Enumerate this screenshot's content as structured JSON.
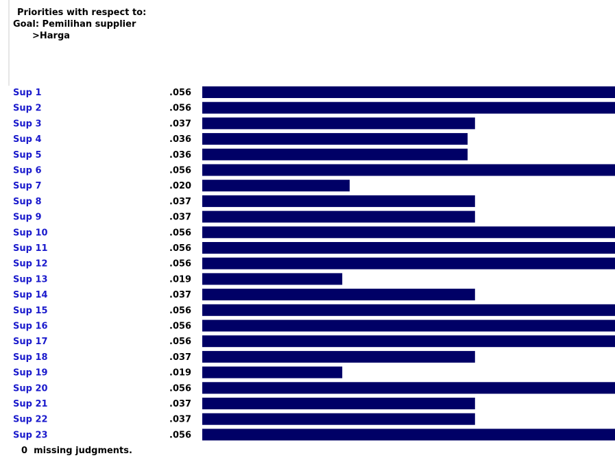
{
  "header": {
    "line1": "Priorities with respect to:",
    "line2": "Goal: Pemilihan supplier",
    "line3": ">Harga"
  },
  "footer": {
    "text": "0  missing judgments."
  },
  "colors": {
    "bar": "#000066",
    "label": "#1a1acc",
    "value": "#000000"
  },
  "chart_data": {
    "type": "bar",
    "orientation": "horizontal",
    "categories": [
      "Sup 1",
      "Sup 2",
      "Sup 3",
      "Sup 4",
      "Sup 5",
      "Sup 6",
      "Sup 7",
      "Sup 8",
      "Sup 9",
      "Sup 10",
      "Sup 11",
      "Sup 12",
      "Sup 13",
      "Sup 14",
      "Sup 15",
      "Sup 16",
      "Sup 17",
      "Sup 18",
      "Sup 19",
      "Sup 20",
      "Sup 21",
      "Sup 22",
      "Sup 23"
    ],
    "values": [
      0.056,
      0.056,
      0.037,
      0.036,
      0.036,
      0.056,
      0.02,
      0.037,
      0.037,
      0.056,
      0.056,
      0.056,
      0.019,
      0.037,
      0.056,
      0.056,
      0.056,
      0.037,
      0.019,
      0.056,
      0.037,
      0.037,
      0.056
    ],
    "value_labels": [
      ".056",
      ".056",
      ".037",
      ".036",
      ".036",
      ".056",
      ".020",
      ".037",
      ".037",
      ".056",
      ".056",
      ".056",
      ".019",
      ".037",
      ".056",
      ".056",
      ".056",
      ".037",
      ".019",
      ".056",
      ".037",
      ".037",
      ".056"
    ],
    "xlim": [
      0,
      0.056
    ],
    "grid": false,
    "legend": "none"
  }
}
